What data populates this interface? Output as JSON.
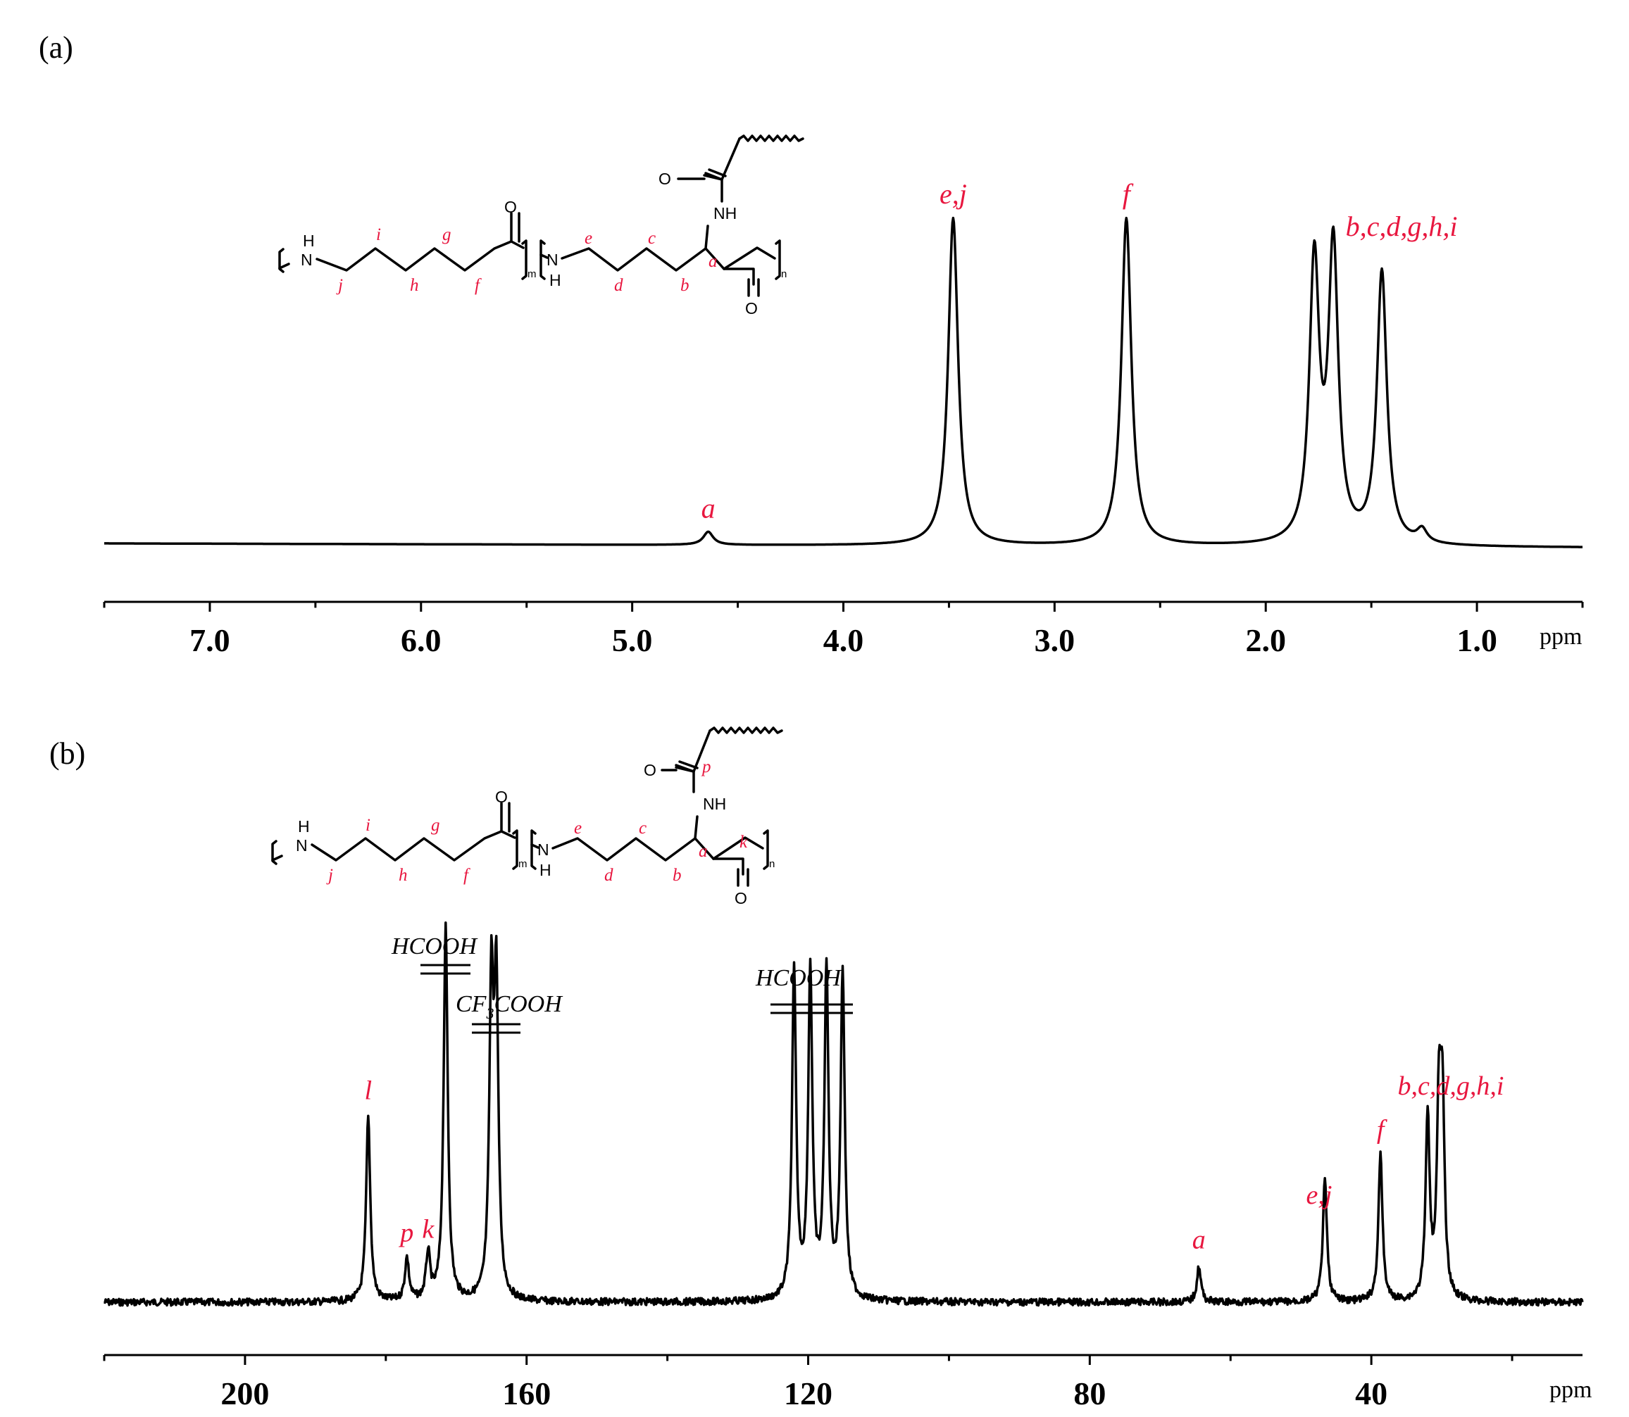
{
  "panels": {
    "a": {
      "label": "(a)"
    },
    "b": {
      "label": "(b)"
    }
  },
  "chart_data": [
    {
      "type": "line",
      "panel": "(a)",
      "x_unit": "ppm",
      "x_reversed": true,
      "xlim": [
        7.5,
        0.5
      ],
      "x_ticks": [
        "7.0",
        "6.0",
        "5.0",
        "4.0",
        "3.0",
        "2.0",
        "1.0"
      ],
      "grid": false,
      "peaks": [
        {
          "label": "a",
          "x": 4.64,
          "intensity": 0.04
        },
        {
          "label": "e,j",
          "x": 3.48,
          "intensity": 1.0
        },
        {
          "label": "f",
          "x": 2.66,
          "intensity": 1.0
        },
        {
          "label": "b,c,d,g,h,i",
          "x": 1.77,
          "intensity": 0.85
        },
        {
          "label": "",
          "x": 1.68,
          "intensity": 0.89
        },
        {
          "label": "",
          "x": 1.45,
          "intensity": 0.83
        },
        {
          "label": "",
          "x": 1.26,
          "intensity": 0.04
        }
      ],
      "structure": {
        "atoms": [
          "H",
          "N",
          "O",
          "O",
          "O",
          "NH",
          "N",
          "H",
          "m",
          "n"
        ],
        "letters": [
          "j",
          "i",
          "h",
          "g",
          "f",
          "e",
          "d",
          "c",
          "b",
          "a"
        ]
      }
    },
    {
      "type": "line",
      "panel": "(b)",
      "x_unit": "ppm",
      "x_reversed": true,
      "xlim": [
        220,
        10
      ],
      "x_ticks": [
        "200",
        "160",
        "120",
        "80",
        "40"
      ],
      "grid": false,
      "peaks": [
        {
          "label": "l",
          "x": 182.5,
          "intensity": 0.52
        },
        {
          "label": "p",
          "x": 177.0,
          "intensity": 0.12
        },
        {
          "label": "k",
          "x": 174.0,
          "intensity": 0.13
        },
        {
          "label": "",
          "x": 171.5,
          "intensity": 1.05
        },
        {
          "label": "",
          "x": 165.0,
          "intensity": 0.85
        },
        {
          "label": "",
          "x": 164.3,
          "intensity": 0.85
        },
        {
          "label": "",
          "x": 122.0,
          "intensity": 0.92
        },
        {
          "label": "",
          "x": 119.7,
          "intensity": 0.92
        },
        {
          "label": "",
          "x": 117.4,
          "intensity": 0.92
        },
        {
          "label": "",
          "x": 115.1,
          "intensity": 0.92
        },
        {
          "label": "a",
          "x": 64.5,
          "intensity": 0.1
        },
        {
          "label": "e,j",
          "x": 46.6,
          "intensity": 0.34
        },
        {
          "label": "f",
          "x": 38.7,
          "intensity": 0.41
        },
        {
          "label": "b,c,d,g,h,i",
          "x": 32.0,
          "intensity": 0.51
        },
        {
          "label": "",
          "x": 30.4,
          "intensity": 0.51
        },
        {
          "label": "",
          "x": 29.9,
          "intensity": 0.52
        }
      ],
      "solvent_labels": [
        "HCOOH",
        "CF",
        "3",
        "COOH",
        "HCOOH"
      ],
      "structure": {
        "atoms": [
          "H",
          "N",
          "O",
          "O",
          "O",
          "NH",
          "N",
          "H",
          "m",
          "n"
        ],
        "letters": [
          "j",
          "i",
          "h",
          "g",
          "f",
          "e",
          "d",
          "c",
          "b",
          "a",
          "p",
          "k"
        ]
      }
    }
  ]
}
